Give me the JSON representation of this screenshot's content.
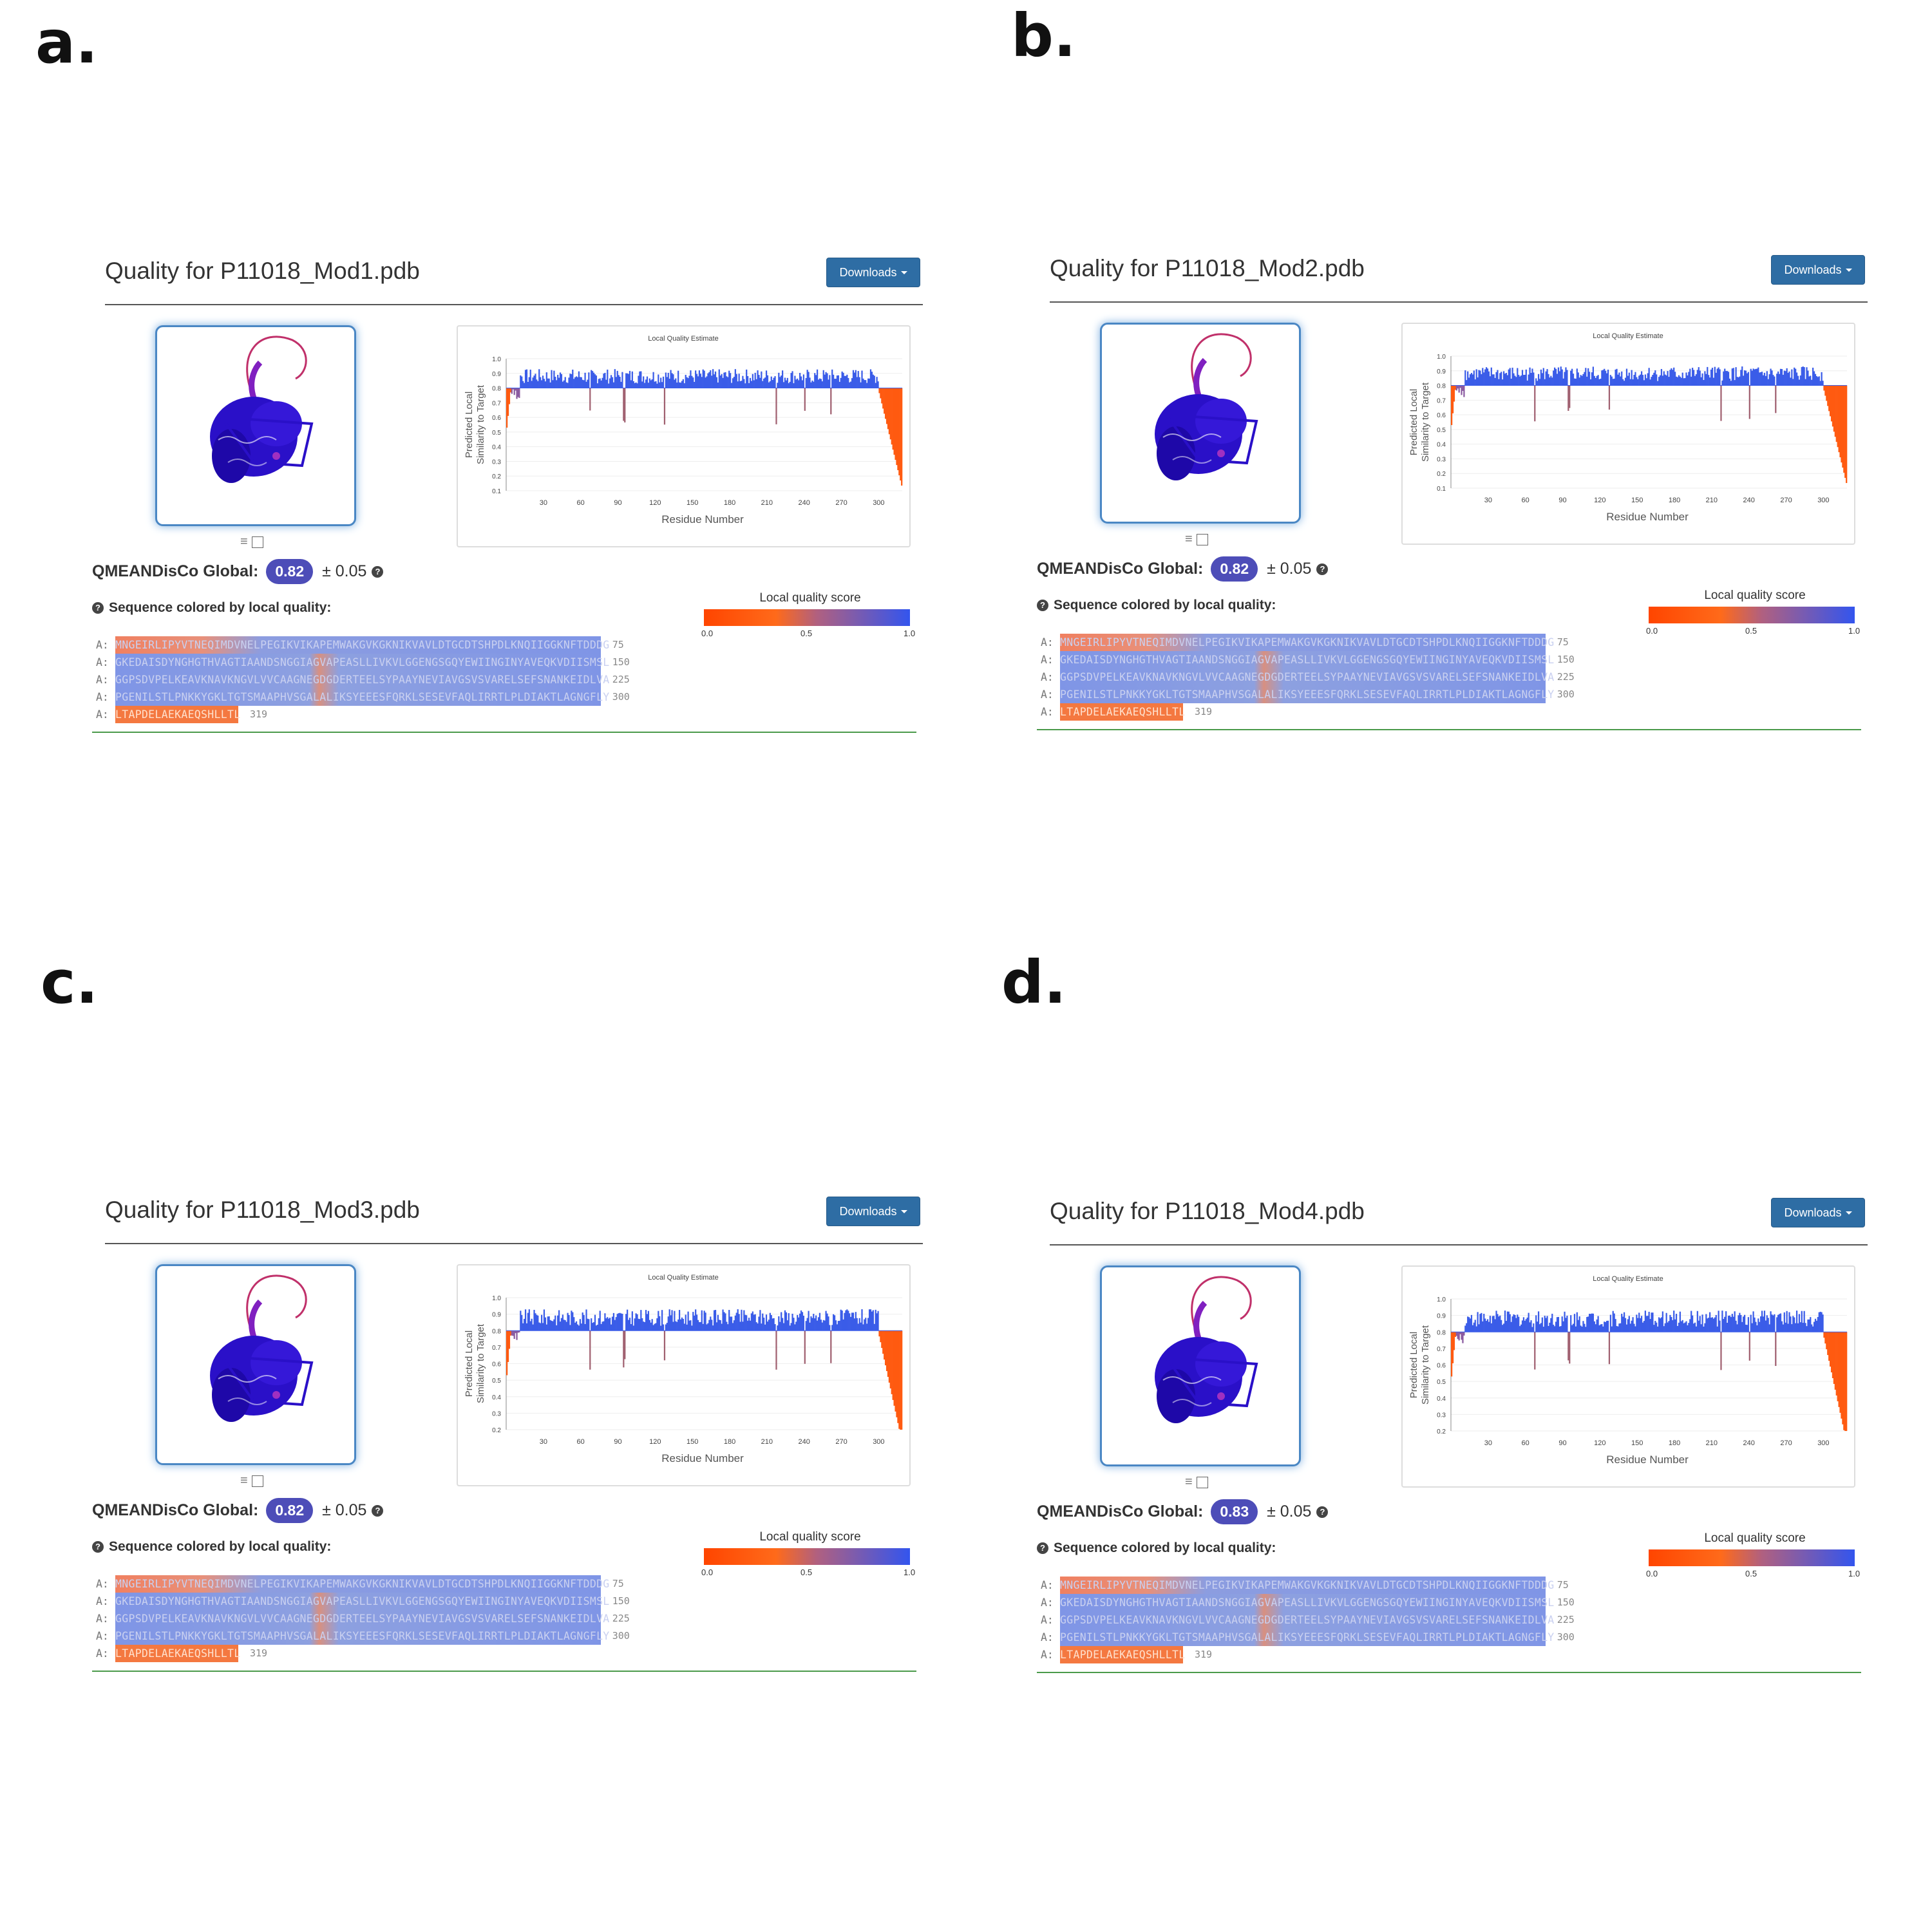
{
  "panel_letters": [
    "a.",
    "b.",
    "c.",
    "d."
  ],
  "panels": [
    {
      "letter": "a.",
      "title": "Quality for P11018_Mod1.pdb",
      "downloads_label": "Downloads",
      "global_label": "QMEANDisCo Global:",
      "global_score": "0.82",
      "global_error": "± 0.05",
      "seq_header": "Sequence colored by local quality:",
      "legend_title": "Local quality score",
      "legend_ticks": [
        "0.0",
        "0.5",
        "1.0"
      ],
      "plot_title": "Local Quality Estimate",
      "plot_xlabel": "Residue Number",
      "plot_ylabel": [
        "Predicted Local",
        "Similarity to Target"
      ],
      "y_ticks": [
        "0.1",
        "0.2",
        "0.3",
        "0.4",
        "0.5",
        "0.6",
        "0.7",
        "0.8",
        "0.9",
        "1.0"
      ],
      "x_ticks": [
        "30",
        "60",
        "90",
        "120",
        "150",
        "180",
        "210",
        "240",
        "270",
        "300"
      ],
      "chain_label": "A:",
      "sequence_lines": [
        {
          "text": "MNGEIRLIPYVTNEQIMDVNELPEGIKVIKAPEMWAKGVKGKNIKVAVLDTGCDTSHPDLKNQIIGGKNFTDDDG",
          "end": "75"
        },
        {
          "text": "GKEDAISDYNGHGTHVAGTIAANDSNGGIAGVAPEASLLIVKVLGGENGSGQYEWIINGINYAVEQKVDIISMSL",
          "end": "150"
        },
        {
          "text": "GGPSDVPELKEAVKNAVKNGVLVVCAAGNEGDGDERTEELSYPAAYNEVIAVGSVSVARELSEFSNANKEIDLVA",
          "end": "225"
        },
        {
          "text": "PGENILSTLPNKKYGKLTGTSMAAPHVSGALALIKSYEEESFQRKLSESEVFAQLIRRTLPLDIAKTLAGNGFLY",
          "end": "300"
        },
        {
          "text": "LTAPDELAEKAEQSHLLTL",
          "end": "319"
        }
      ]
    },
    {
      "letter": "b.",
      "title": "Quality for P11018_Mod2.pdb",
      "downloads_label": "Downloads",
      "global_label": "QMEANDisCo Global:",
      "global_score": "0.82",
      "global_error": "± 0.05",
      "seq_header": "Sequence colored by local quality:",
      "legend_title": "Local quality score",
      "legend_ticks": [
        "0.0",
        "0.5",
        "1.0"
      ],
      "plot_title": "Local Quality Estimate",
      "plot_xlabel": "Residue Number",
      "plot_ylabel": [
        "Predicted Local",
        "Similarity to Target"
      ],
      "y_ticks": [
        "0.1",
        "0.2",
        "0.3",
        "0.4",
        "0.5",
        "0.6",
        "0.7",
        "0.8",
        "0.9",
        "1.0"
      ],
      "x_ticks": [
        "30",
        "60",
        "90",
        "120",
        "150",
        "180",
        "210",
        "240",
        "270",
        "300"
      ],
      "chain_label": "A:",
      "sequence_lines": [
        {
          "text": "MNGEIRLIPYVTNEQIMDVNELPEGIKVIKAPEMWAKGVKGKNIKVAVLDTGCDTSHPDLKNQIIGGKNFTDDDG",
          "end": "75"
        },
        {
          "text": "GKEDAISDYNGHGTHVAGTIAANDSNGGIAGVAPEASLLIVKVLGGENGSGQYEWIINGINYAVEQKVDIISMSL",
          "end": "150"
        },
        {
          "text": "GGPSDVPELKEAVKNAVKNGVLVVCAAGNEGDGDERTEELSYPAAYNEVIAVGSVSVARELSEFSNANKEIDLVA",
          "end": "225"
        },
        {
          "text": "PGENILSTLPNKKYGKLTGTSMAAPHVSGALALIKSYEEESFQRKLSESEVFAQLIRRTLPLDIAKTLAGNGFLY",
          "end": "300"
        },
        {
          "text": "LTAPDELAEKAEQSHLLTL",
          "end": "319"
        }
      ]
    },
    {
      "letter": "c.",
      "title": "Quality for P11018_Mod3.pdb",
      "downloads_label": "Downloads",
      "global_label": "QMEANDisCo Global:",
      "global_score": "0.82",
      "global_error": "± 0.05",
      "seq_header": "Sequence colored by local quality:",
      "legend_title": "Local quality score",
      "legend_ticks": [
        "0.0",
        "0.5",
        "1.0"
      ],
      "plot_title": "Local Quality Estimate",
      "plot_xlabel": "Residue Number",
      "plot_ylabel": [
        "Predicted Local",
        "Similarity to Target"
      ],
      "y_ticks": [
        "0.2",
        "0.3",
        "0.4",
        "0.5",
        "0.6",
        "0.7",
        "0.8",
        "0.9",
        "1.0"
      ],
      "x_ticks": [
        "30",
        "60",
        "90",
        "120",
        "150",
        "180",
        "210",
        "240",
        "270",
        "300"
      ],
      "chain_label": "A:",
      "sequence_lines": [
        {
          "text": "MNGEIRLIPYVTNEQIMDVNELPEGIKVIKAPEMWAKGVKGKNIKVAVLDTGCDTSHPDLKNQIIGGKNFTDDDG",
          "end": "75"
        },
        {
          "text": "GKEDAISDYNGHGTHVAGTIAANDSNGGIAGVAPEASLLIVKVLGGENGSGQYEWIINGINYAVEQKVDIISMSL",
          "end": "150"
        },
        {
          "text": "GGPSDVPELKEAVKNAVKNGVLVVCAAGNEGDGDERTEELSYPAAYNEVIAVGSVSVARELSEFSNANKEIDLVA",
          "end": "225"
        },
        {
          "text": "PGENILSTLPNKKYGKLTGTSMAAPHVSGALALIKSYEEESFQRKLSESEVFAQLIRRTLPLDIAKTLAGNGFLY",
          "end": "300"
        },
        {
          "text": "LTAPDELAEKAEQSHLLTL",
          "end": "319"
        }
      ]
    },
    {
      "letter": "d.",
      "title": "Quality for P11018_Mod4.pdb",
      "downloads_label": "Downloads",
      "global_label": "QMEANDisCo Global:",
      "global_score": "0.83",
      "global_error": "± 0.05",
      "seq_header": "Sequence colored by local quality:",
      "legend_title": "Local quality score",
      "legend_ticks": [
        "0.0",
        "0.5",
        "1.0"
      ],
      "plot_title": "Local Quality Estimate",
      "plot_xlabel": "Residue Number",
      "plot_ylabel": [
        "Predicted Local",
        "Similarity to Target"
      ],
      "y_ticks": [
        "0.2",
        "0.3",
        "0.4",
        "0.5",
        "0.6",
        "0.7",
        "0.8",
        "0.9",
        "1.0"
      ],
      "x_ticks": [
        "30",
        "60",
        "90",
        "120",
        "150",
        "180",
        "210",
        "240",
        "270",
        "300"
      ],
      "chain_label": "A:",
      "sequence_lines": [
        {
          "text": "MNGEIRLIPYVTNEQIMDVNELPEGIKVIKAPEMWAKGVKGKNIKVAVLDTGCDTSHPDLKNQIIGGKNFTDDDG",
          "end": "75"
        },
        {
          "text": "GKEDAISDYNGHGTHVAGTIAANDSNGGIAGVAPEASLLIVKVLGGENGSGQYEWIINGINYAVEQKVDIISMSL",
          "end": "150"
        },
        {
          "text": "GGPSDVPELKEAVKNAVKNGVLVVCAAGNEGDGDERTEELSYPAAYNEVIAVGSVSVARELSEFSNANKEIDLVA",
          "end": "225"
        },
        {
          "text": "PGENILSTLPNKKYGKLTGTSMAAPHVSGALALIKSYEEESFQRKLSESEVFAQLIRRTLPLDIAKTLAGNGFLY",
          "end": "300"
        },
        {
          "text": "LTAPDELAEKAEQSHLLTL",
          "end": "319"
        }
      ]
    }
  ],
  "icons": {
    "help": "question-circle-icon",
    "structure_controls": "layers-icon"
  },
  "colors": {
    "low_quality": "#ff4500",
    "high_quality": "#3355ee",
    "button": "#2e6da4",
    "badge": "#4d4db8"
  }
}
